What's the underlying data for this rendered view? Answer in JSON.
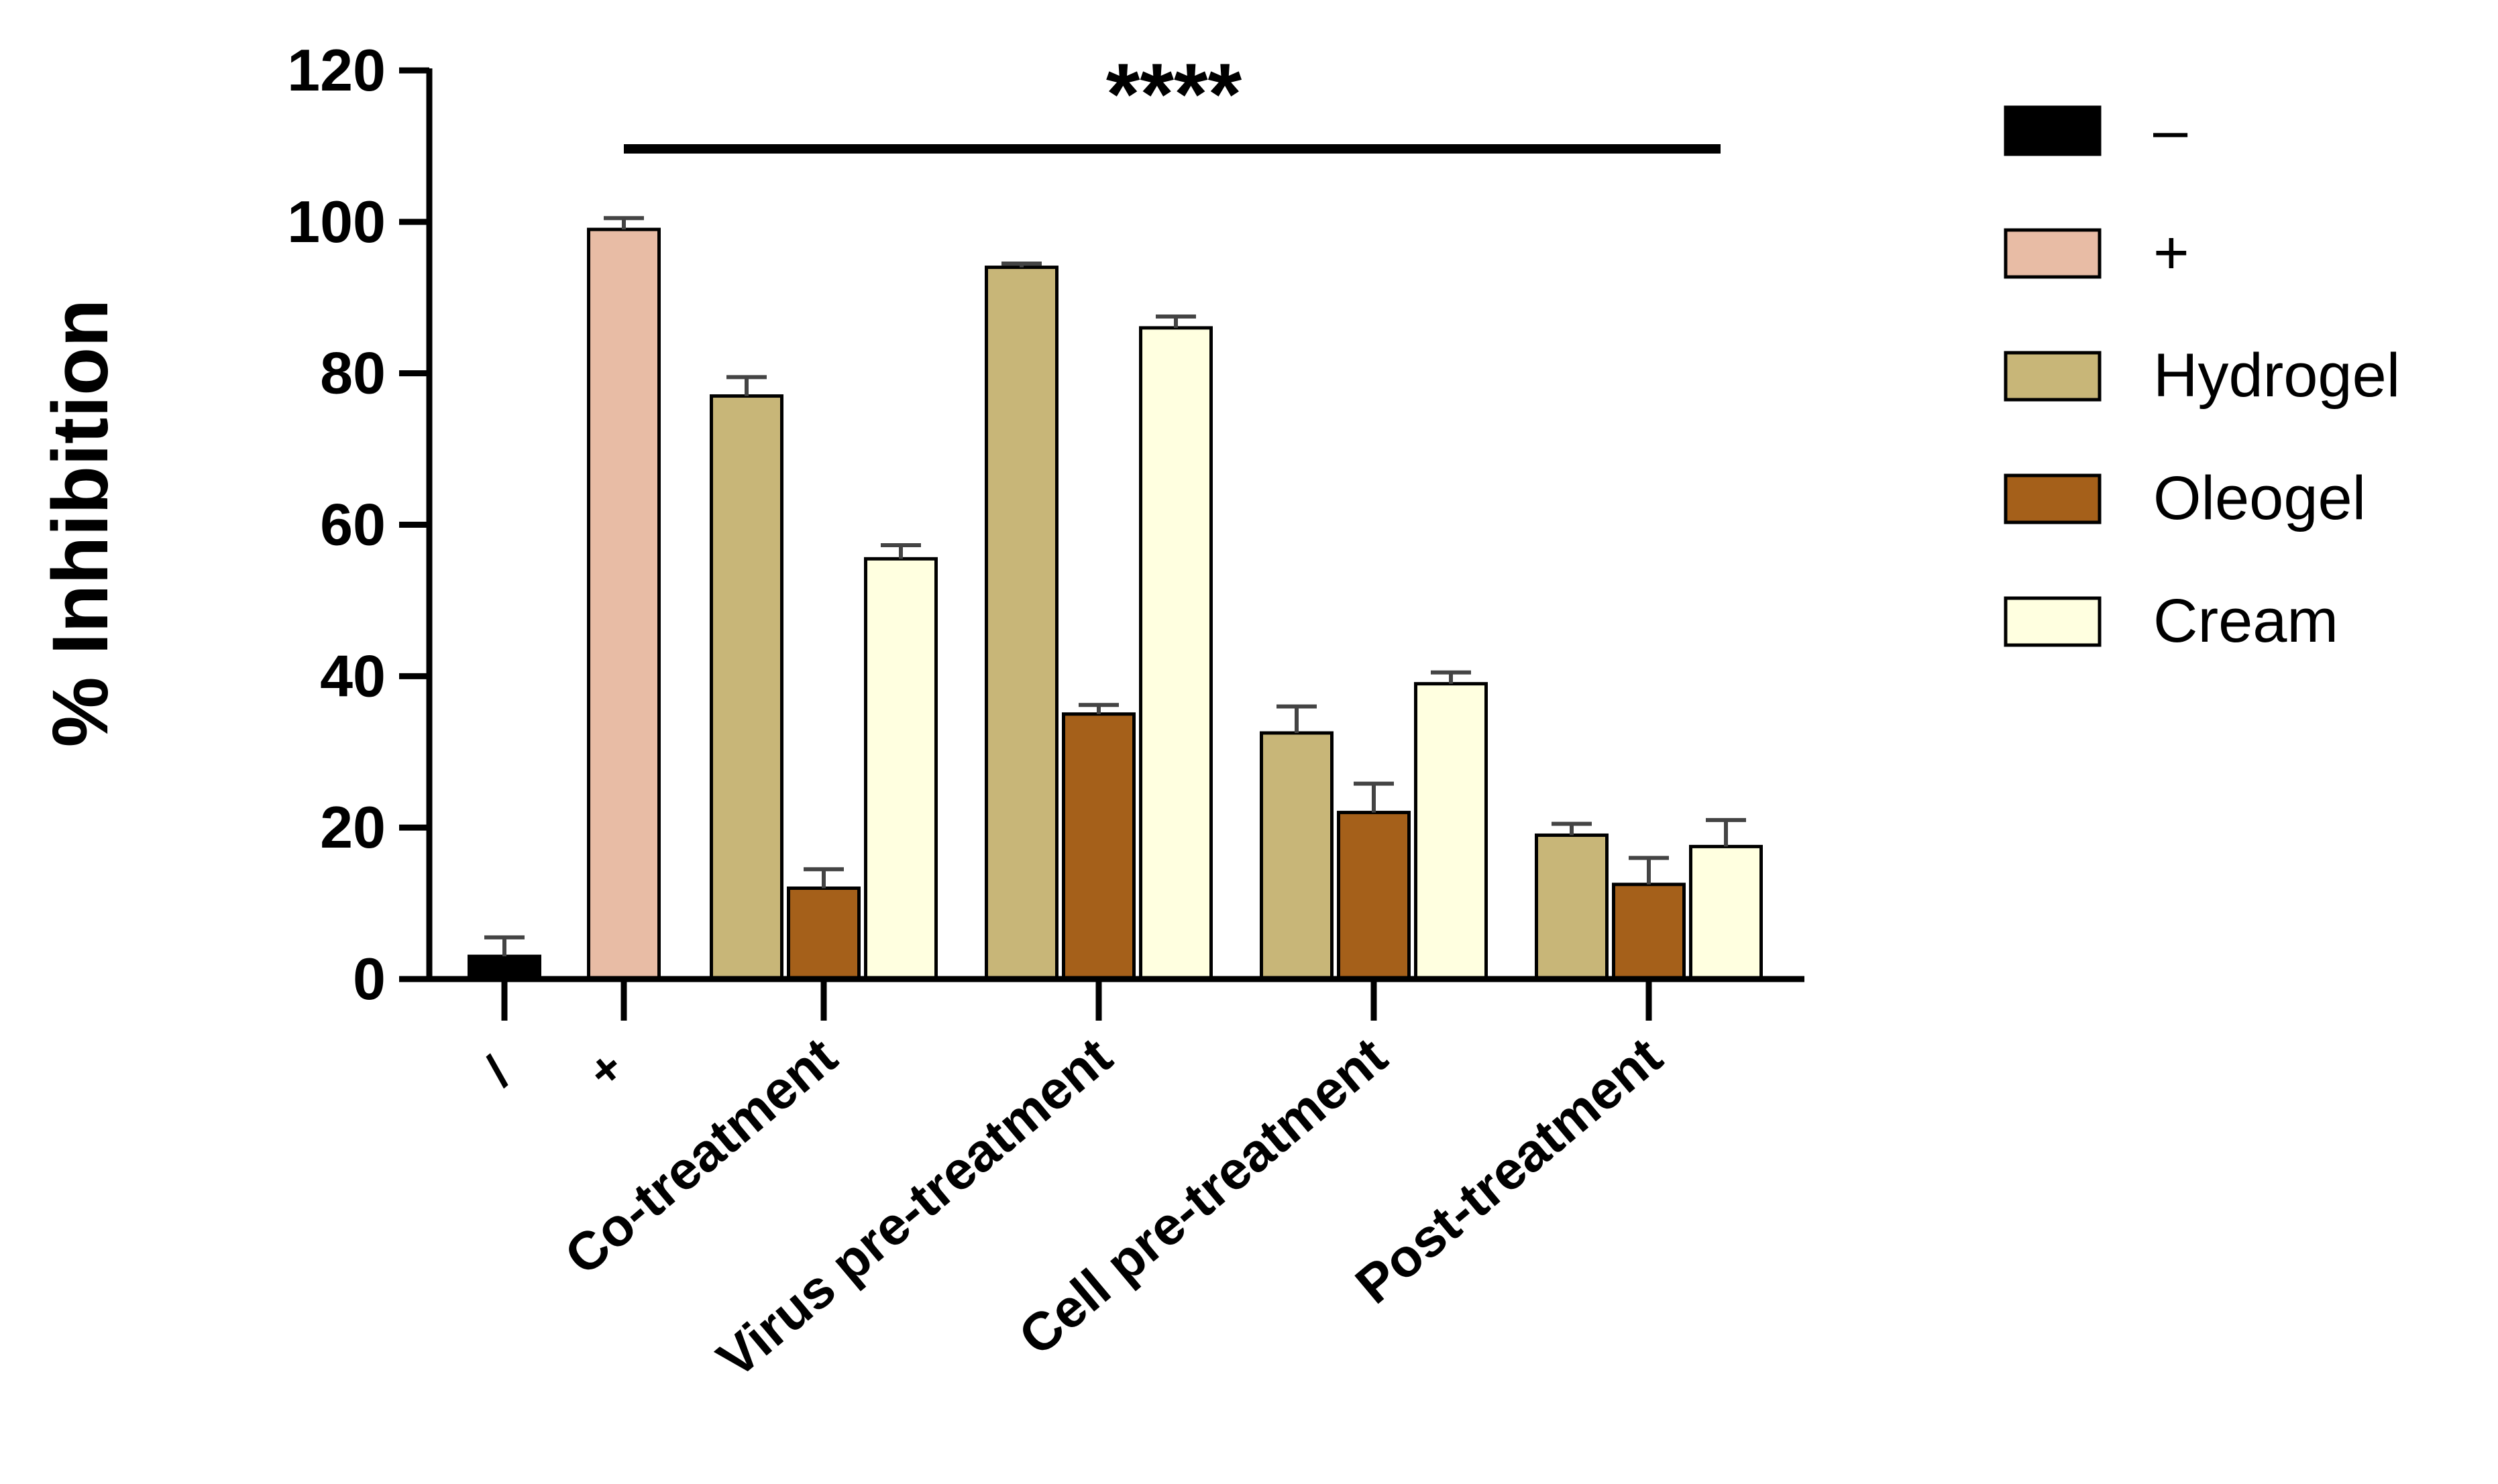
{
  "chart_data": {
    "type": "bar",
    "title": "",
    "xlabel": "",
    "ylabel": "% Inhibition",
    "ylim": [
      0,
      120
    ],
    "yticks": [
      0,
      20,
      40,
      60,
      80,
      100,
      120
    ],
    "controls": [
      {
        "label": "–",
        "tick_label": "/",
        "value": 3,
        "error": 2.5
      },
      {
        "label": "+",
        "tick_label": "+",
        "value": 99,
        "error": 1.5
      }
    ],
    "categories": [
      "Co-treatment",
      "Virus pre-treatment",
      "Cell pre-treatment",
      "Post-treatment"
    ],
    "series": [
      {
        "name": "Hydrogel",
        "values": [
          77,
          94,
          32.5,
          19
        ],
        "errors": [
          2.5,
          0.5,
          3.5,
          1.5
        ]
      },
      {
        "name": "Oleogel",
        "values": [
          12,
          35,
          22,
          12.5
        ],
        "errors": [
          2.5,
          1.2,
          3.8,
          3.5
        ]
      },
      {
        "name": "Cream",
        "values": [
          55.5,
          86,
          39,
          17.5
        ],
        "errors": [
          1.8,
          1.5,
          1.5,
          3.5
        ]
      }
    ],
    "significance": {
      "label": "****"
    },
    "legend": {
      "position": "right",
      "entries": [
        "–",
        "+",
        "Hydrogel",
        "Oleogel",
        "Cream"
      ]
    }
  },
  "colors": {
    "neg": "#000000",
    "pos": "#e8bca5",
    "Hydrogel": "#c8b678",
    "Oleogel": "#a5601a",
    "Cream": "#ffffe0"
  }
}
